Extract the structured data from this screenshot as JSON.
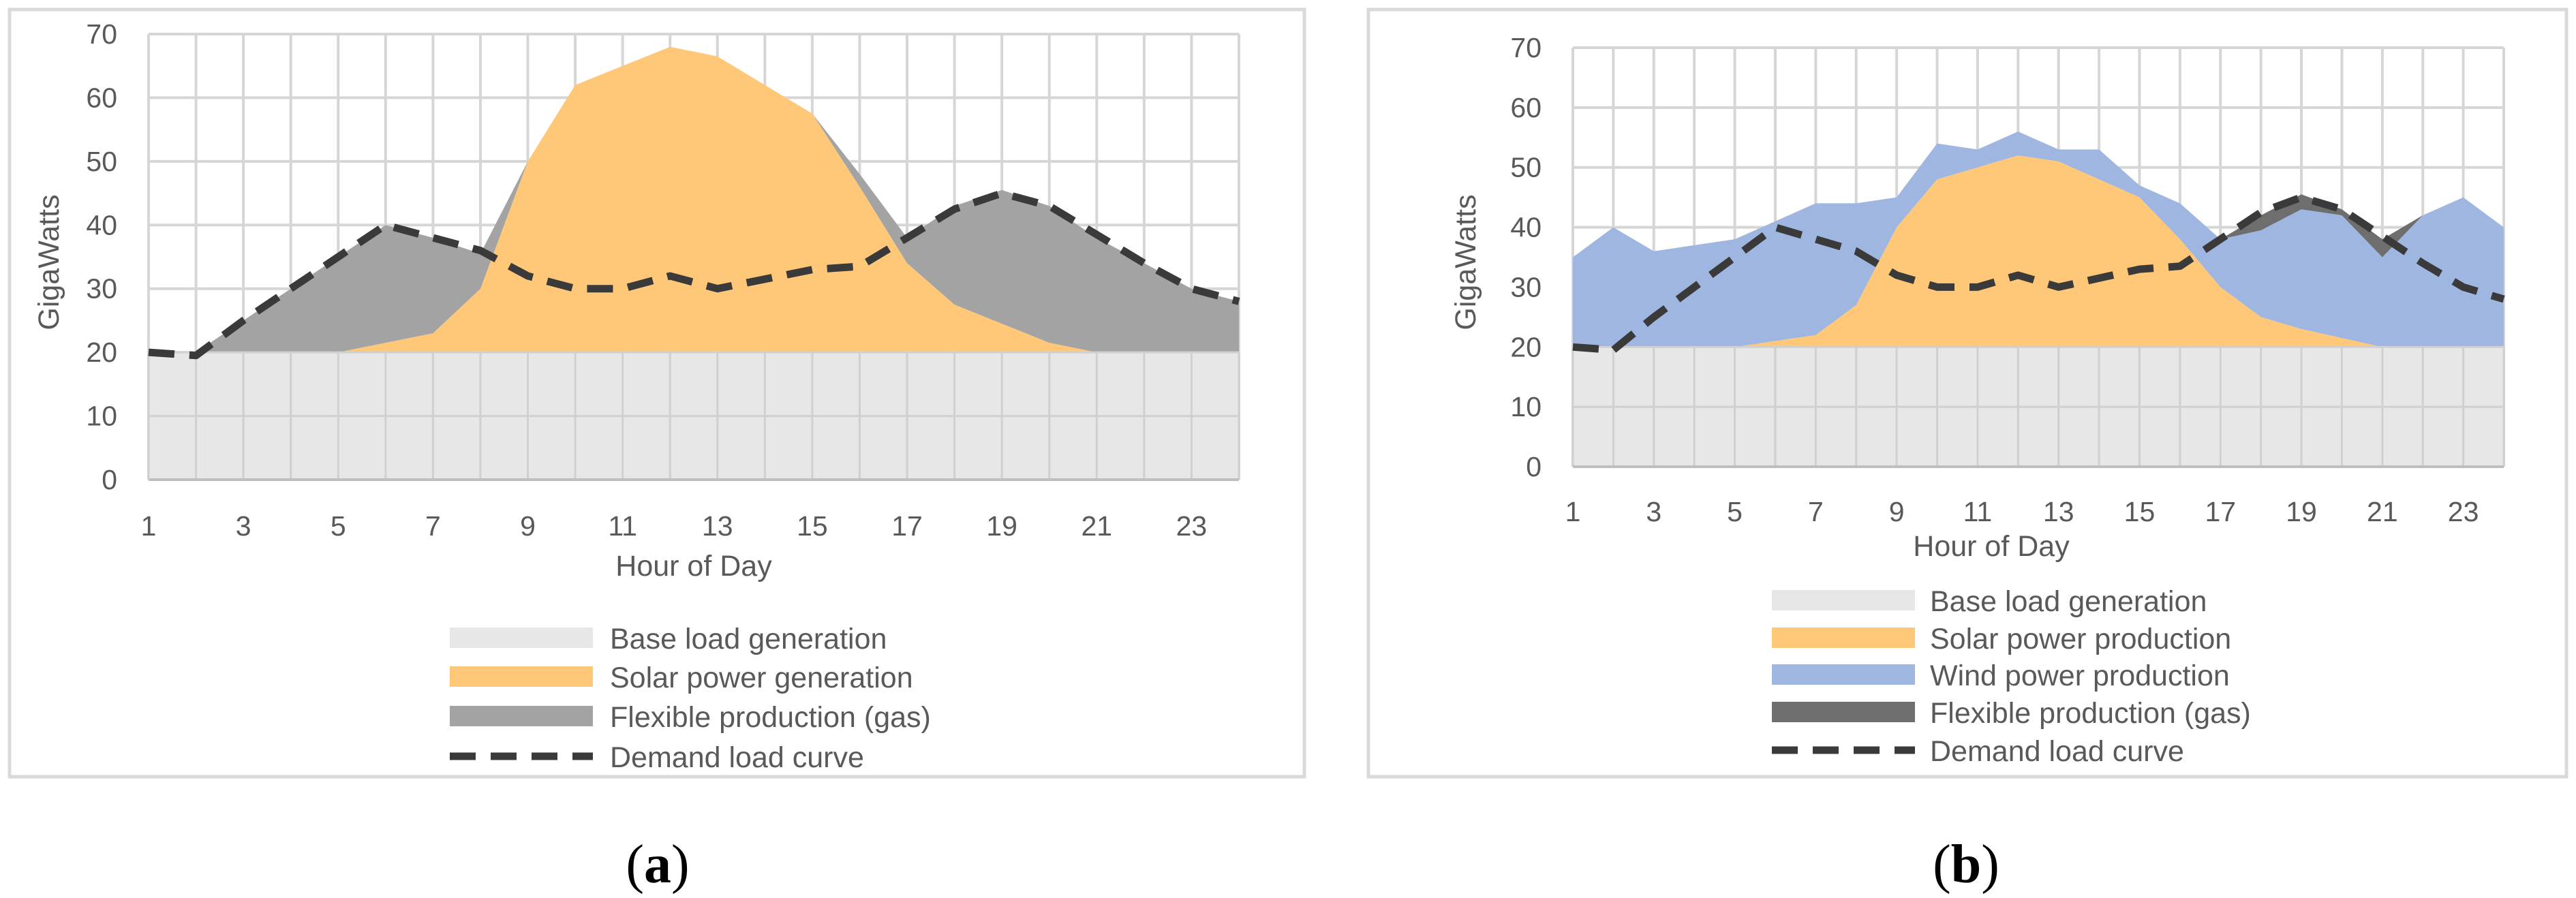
{
  "colors": {
    "base": "#E7E7E7",
    "solar": "#FFC878",
    "gas_a": "#A3A3A3",
    "wind": "#9FB7E0",
    "gas_b": "#6E6E6E",
    "demand": "#3A3A3A",
    "grid": "#D6D6D6",
    "frame": "#D9D9D9"
  },
  "chart_data": [
    {
      "id": "a",
      "type": "area",
      "panel_label": "a",
      "xlabel": "Hour of Day",
      "ylabel": "GigaWatts",
      "xlim": [
        1,
        24
      ],
      "ylim": [
        0,
        70
      ],
      "x_ticks": [
        1,
        3,
        5,
        7,
        9,
        11,
        13,
        15,
        17,
        19,
        21,
        23
      ],
      "y_ticks": [
        0,
        10,
        20,
        30,
        40,
        50,
        60,
        70
      ],
      "grid": true,
      "legend_position": "bottom",
      "hours": [
        1,
        2,
        3,
        4,
        5,
        6,
        7,
        8,
        9,
        10,
        11,
        12,
        13,
        14,
        15,
        16,
        17,
        18,
        19,
        20,
        21,
        22,
        23,
        24
      ],
      "series": [
        {
          "name": "Base load generation",
          "kind": "band",
          "color_key": "base",
          "lower": [
            0,
            0,
            0,
            0,
            0,
            0,
            0,
            0,
            0,
            0,
            0,
            0,
            0,
            0,
            0,
            0,
            0,
            0,
            0,
            0,
            0,
            0,
            0,
            0
          ],
          "upper": [
            20,
            20,
            20,
            20,
            20,
            20,
            20,
            20,
            20,
            20,
            20,
            20,
            20,
            20,
            20,
            20,
            20,
            20,
            20,
            20,
            20,
            20,
            20,
            20
          ]
        },
        {
          "name": "Solar power generation",
          "kind": "band",
          "color_key": "solar",
          "lower": [
            20,
            20,
            20,
            20,
            20,
            20,
            20,
            20,
            20,
            20,
            20,
            20,
            20,
            20,
            20,
            20,
            20,
            20,
            20,
            20,
            20,
            20,
            20,
            20
          ],
          "upper": [
            20,
            20,
            20,
            20,
            20,
            21.5,
            23,
            30,
            50,
            62,
            65,
            68,
            66.5,
            62,
            57.5,
            46,
            34,
            27.5,
            24.5,
            21.5,
            20,
            20,
            20,
            20
          ]
        },
        {
          "name": "Flexible production (gas)",
          "kind": "band",
          "color_key": "gas_a",
          "lower": [
            20,
            20,
            20,
            20,
            20,
            21.5,
            23,
            30,
            50,
            62,
            65,
            68,
            66.5,
            62,
            57.5,
            46,
            34,
            27.5,
            24.5,
            21.5,
            20,
            20,
            20,
            20
          ],
          "upper": [
            20,
            20,
            25,
            30,
            35,
            40,
            38,
            35.5,
            50,
            62,
            65,
            68,
            66.5,
            62,
            57.5,
            48,
            38,
            43,
            45.5,
            43,
            38,
            34,
            30,
            28
          ]
        },
        {
          "name": "Demand load curve",
          "kind": "line",
          "color_key": "demand",
          "values": [
            20,
            19.5,
            25,
            30,
            35,
            40,
            38,
            36,
            32,
            30,
            30,
            32,
            30,
            31.5,
            33,
            33.5,
            38,
            42.5,
            45,
            43,
            38.5,
            34,
            30,
            28
          ]
        }
      ]
    },
    {
      "id": "b",
      "type": "area",
      "panel_label": "b",
      "xlabel": "Hour of Day",
      "ylabel": "GigaWatts",
      "xlim": [
        1,
        24
      ],
      "ylim": [
        0,
        70
      ],
      "x_ticks": [
        1,
        3,
        5,
        7,
        9,
        11,
        13,
        15,
        17,
        19,
        21,
        23
      ],
      "y_ticks": [
        0,
        10,
        20,
        30,
        40,
        50,
        60,
        70
      ],
      "grid": true,
      "legend_position": "bottom",
      "hours": [
        1,
        2,
        3,
        4,
        5,
        6,
        7,
        8,
        9,
        10,
        11,
        12,
        13,
        14,
        15,
        16,
        17,
        18,
        19,
        20,
        21,
        22,
        23,
        24
      ],
      "series": [
        {
          "name": "Base load generation",
          "kind": "band",
          "color_key": "base",
          "lower": [
            0,
            0,
            0,
            0,
            0,
            0,
            0,
            0,
            0,
            0,
            0,
            0,
            0,
            0,
            0,
            0,
            0,
            0,
            0,
            0,
            0,
            0,
            0,
            0
          ],
          "upper": [
            20,
            20,
            20,
            20,
            20,
            20,
            20,
            20,
            20,
            20,
            20,
            20,
            20,
            20,
            20,
            20,
            20,
            20,
            20,
            20,
            20,
            20,
            20,
            20
          ]
        },
        {
          "name": "Solar power production",
          "kind": "band",
          "color_key": "solar",
          "lower": [
            20,
            20,
            20,
            20,
            20,
            20,
            20,
            20,
            20,
            20,
            20,
            20,
            20,
            20,
            20,
            20,
            20,
            20,
            20,
            20,
            20,
            20,
            20,
            20
          ],
          "upper": [
            20,
            20,
            20,
            20,
            20,
            21,
            22,
            27,
            40,
            48,
            50,
            52,
            51,
            48,
            45,
            38,
            30,
            25,
            23,
            21.5,
            20,
            20,
            20,
            20
          ]
        },
        {
          "name": "Wind power production",
          "kind": "band",
          "color_key": "wind",
          "lower": [
            20,
            20,
            20,
            20,
            20,
            21,
            22,
            27,
            40,
            48,
            50,
            52,
            51,
            48,
            45,
            38,
            30,
            25,
            23,
            21.5,
            20,
            20,
            20,
            20
          ],
          "upper": [
            35,
            40,
            36,
            37,
            38,
            41,
            44,
            44,
            45,
            54,
            53,
            56,
            53,
            53,
            47,
            44,
            38,
            39.5,
            43,
            42,
            35,
            42,
            45,
            40
          ]
        },
        {
          "name": "Flexible production (gas)",
          "kind": "band",
          "color_key": "gas_b",
          "lower": [
            35,
            40,
            36,
            37,
            38,
            41,
            44,
            44,
            45,
            54,
            53,
            56,
            53,
            53,
            47,
            44,
            38,
            39.5,
            43,
            42,
            35,
            42,
            45,
            40
          ],
          "upper": [
            35,
            40,
            36,
            37,
            38,
            41,
            44,
            44,
            45,
            54,
            53,
            56,
            53,
            53,
            47,
            44,
            38,
            42,
            45.5,
            43,
            38,
            42,
            45,
            40
          ]
        },
        {
          "name": "Demand load curve",
          "kind": "line",
          "color_key": "demand",
          "values": [
            20,
            19.5,
            25,
            30,
            35,
            40,
            38,
            36,
            32,
            30,
            30,
            32,
            30,
            31.5,
            33,
            33.5,
            38,
            42.5,
            45,
            43,
            38.5,
            34,
            30,
            28
          ]
        }
      ]
    }
  ]
}
